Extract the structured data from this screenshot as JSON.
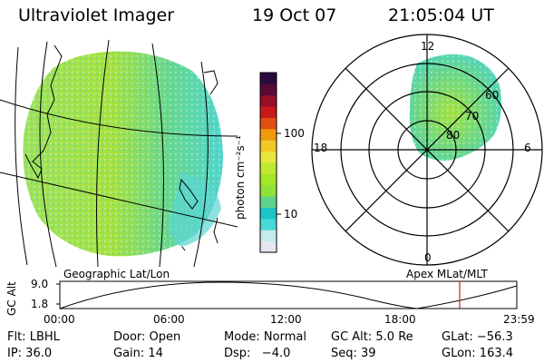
{
  "header": {
    "instrument": "Ultraviolet Imager",
    "date": "19 Oct 07",
    "time": "21:05:04 UT"
  },
  "colorbar": {
    "unit_label": "photon cm⁻²s⁻¹",
    "ticks": [
      "100",
      "10"
    ],
    "colors": [
      "#e6e6f0",
      "#c4ecea",
      "#48d8d6",
      "#1ec4c4",
      "#5ed38a",
      "#8ee23a",
      "#a4e628",
      "#bfe830",
      "#e8e83c",
      "#f0c828",
      "#f09a10",
      "#e05010",
      "#c81818",
      "#961028",
      "#5a0838",
      "#2a0a3c"
    ]
  },
  "geo_panel": {
    "caption": "Geographic Lat/Lon"
  },
  "polar_panel": {
    "caption": "Apex MLat/MLT",
    "mlt_labels": [
      "12",
      "18",
      "6",
      "0"
    ],
    "lat_labels": [
      "60",
      "70",
      "80"
    ]
  },
  "altitude_plot": {
    "ylabel": "GC Alt",
    "y_ticks": [
      "9.0",
      "1.8"
    ],
    "x_ticks": [
      "00:00",
      "06:00",
      "12:00",
      "18:00",
      "23:59"
    ],
    "current_time_marker_color": "#d02020"
  },
  "footer": {
    "row1": [
      "Flt: LBHL",
      "Door: Open",
      "Mode: Normal",
      "GC Alt: 5.0 Re",
      "GLat: −56.3"
    ],
    "row2": [
      "IP: 36.0",
      "Gain: 14",
      "Dsp:   −4.0",
      "Seq: 39",
      "GLon: 163.4"
    ]
  }
}
